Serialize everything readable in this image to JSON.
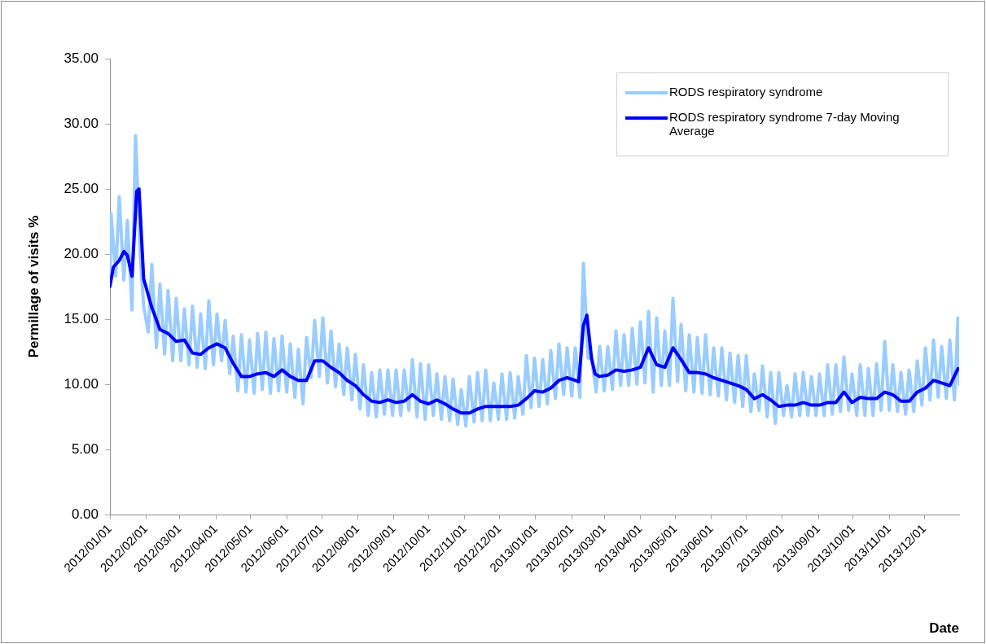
{
  "chart_data": {
    "type": "line",
    "xlabel": "Date",
    "ylabel": "Permillage of visits %",
    "xlim": [
      "2012-01-01",
      "2013-12-31"
    ],
    "xticks": [
      {
        "value": "2012-01-01",
        "label": "2012/01/01"
      },
      {
        "value": "2012-02-01",
        "label": "2012/02/01"
      },
      {
        "value": "2012-03-01",
        "label": "2012/03/01"
      },
      {
        "value": "2012-04-01",
        "label": "2012/04/01"
      },
      {
        "value": "2012-05-01",
        "label": "2012/05/01"
      },
      {
        "value": "2012-06-01",
        "label": "2012/06/01"
      },
      {
        "value": "2012-07-01",
        "label": "2012/07/01"
      },
      {
        "value": "2012-08-01",
        "label": "2012/08/01"
      },
      {
        "value": "2012-09-01",
        "label": "2012/09/01"
      },
      {
        "value": "2012-10-01",
        "label": "2012/10/01"
      },
      {
        "value": "2012-11-01",
        "label": "2012/11/01"
      },
      {
        "value": "2012-12-01",
        "label": "2012/12/01"
      },
      {
        "value": "2013-01-01",
        "label": "2013/01/01"
      },
      {
        "value": "2013-02-01",
        "label": "2013/02/01"
      },
      {
        "value": "2013-03-01",
        "label": "2013/03/01"
      },
      {
        "value": "2013-04-01",
        "label": "2013/04/01"
      },
      {
        "value": "2013-05-01",
        "label": "2013/05/01"
      },
      {
        "value": "2013-06-01",
        "label": "2013/06/01"
      },
      {
        "value": "2013-07-01",
        "label": "2013/07/01"
      },
      {
        "value": "2013-08-01",
        "label": "2013/08/01"
      },
      {
        "value": "2013-09-01",
        "label": "2013/09/01"
      },
      {
        "value": "2013-10-01",
        "label": "2013/10/01"
      },
      {
        "value": "2013-11-01",
        "label": "2013/11/01"
      },
      {
        "value": "2013-12-01",
        "label": "2013/12/01"
      }
    ],
    "ylim": [
      0,
      35
    ],
    "yticks": [
      {
        "value": 0,
        "label": "0.00"
      },
      {
        "value": 5,
        "label": "5.00"
      },
      {
        "value": 10,
        "label": "10.00"
      },
      {
        "value": 15,
        "label": "15.00"
      },
      {
        "value": 20,
        "label": "20.00"
      },
      {
        "value": 25,
        "label": "25.00"
      },
      {
        "value": 30,
        "label": "30.00"
      },
      {
        "value": 35,
        "label": "35.00"
      }
    ],
    "grid": false,
    "legend": "top right",
    "series": [
      {
        "name": "RODS respiratory syndrome",
        "color": "#99ccff",
        "x": [
          "2012-01-01",
          "2012-01-02",
          "2012-01-06",
          "2012-01-09",
          "2012-01-13",
          "2012-01-16",
          "2012-01-20",
          "2012-01-23",
          "2012-01-27",
          "2012-01-30",
          "2012-02-03",
          "2012-02-06",
          "2012-02-10",
          "2012-02-13",
          "2012-02-17",
          "2012-02-20",
          "2012-02-24",
          "2012-02-27",
          "2012-03-02",
          "2012-03-05",
          "2012-03-09",
          "2012-03-12",
          "2012-03-16",
          "2012-03-19",
          "2012-03-23",
          "2012-03-26",
          "2012-03-30",
          "2012-04-02",
          "2012-04-06",
          "2012-04-09",
          "2012-04-13",
          "2012-04-16",
          "2012-04-20",
          "2012-04-23",
          "2012-04-27",
          "2012-04-30",
          "2012-05-04",
          "2012-05-07",
          "2012-05-11",
          "2012-05-14",
          "2012-05-18",
          "2012-05-21",
          "2012-05-25",
          "2012-05-28",
          "2012-06-01",
          "2012-06-04",
          "2012-06-08",
          "2012-06-11",
          "2012-06-15",
          "2012-06-18",
          "2012-06-22",
          "2012-06-25",
          "2012-06-29",
          "2012-07-02",
          "2012-07-06",
          "2012-07-09",
          "2012-07-13",
          "2012-07-16",
          "2012-07-20",
          "2012-07-23",
          "2012-07-27",
          "2012-07-30",
          "2012-08-03",
          "2012-08-06",
          "2012-08-10",
          "2012-08-13",
          "2012-08-17",
          "2012-08-20",
          "2012-08-24",
          "2012-08-27",
          "2012-08-31",
          "2012-09-03",
          "2012-09-07",
          "2012-09-10",
          "2012-09-14",
          "2012-09-17",
          "2012-09-21",
          "2012-09-24",
          "2012-09-28",
          "2012-10-01",
          "2012-10-05",
          "2012-10-08",
          "2012-10-12",
          "2012-10-15",
          "2012-10-19",
          "2012-10-22",
          "2012-10-26",
          "2012-10-29",
          "2012-11-02",
          "2012-11-05",
          "2012-11-09",
          "2012-11-12",
          "2012-11-16",
          "2012-11-19",
          "2012-11-23",
          "2012-11-26",
          "2012-11-30",
          "2012-12-03",
          "2012-12-07",
          "2012-12-10",
          "2012-12-14",
          "2012-12-17",
          "2012-12-21",
          "2012-12-24",
          "2012-12-28",
          "2012-12-31",
          "2013-01-04",
          "2013-01-07",
          "2013-01-11",
          "2013-01-14",
          "2013-01-18",
          "2013-01-21",
          "2013-01-25",
          "2013-01-28",
          "2013-02-01",
          "2013-02-04",
          "2013-02-08",
          "2013-02-11",
          "2013-02-15",
          "2013-02-18",
          "2013-02-22",
          "2013-02-25",
          "2013-03-01",
          "2013-03-04",
          "2013-03-08",
          "2013-03-11",
          "2013-03-15",
          "2013-03-18",
          "2013-03-22",
          "2013-03-25",
          "2013-03-29",
          "2013-04-01",
          "2013-04-05",
          "2013-04-08",
          "2013-04-12",
          "2013-04-15",
          "2013-04-19",
          "2013-04-22",
          "2013-04-26",
          "2013-04-29",
          "2013-05-03",
          "2013-05-06",
          "2013-05-10",
          "2013-05-13",
          "2013-05-17",
          "2013-05-20",
          "2013-05-24",
          "2013-05-27",
          "2013-05-31",
          "2013-06-03",
          "2013-06-07",
          "2013-06-10",
          "2013-06-14",
          "2013-06-17",
          "2013-06-21",
          "2013-06-24",
          "2013-06-28",
          "2013-07-01",
          "2013-07-05",
          "2013-07-08",
          "2013-07-12",
          "2013-07-15",
          "2013-07-19",
          "2013-07-22",
          "2013-07-26",
          "2013-07-29",
          "2013-08-02",
          "2013-08-05",
          "2013-08-09",
          "2013-08-12",
          "2013-08-16",
          "2013-08-19",
          "2013-08-23",
          "2013-08-26",
          "2013-08-30",
          "2013-09-02",
          "2013-09-06",
          "2013-09-09",
          "2013-09-13",
          "2013-09-16",
          "2013-09-20",
          "2013-09-23",
          "2013-09-27",
          "2013-09-30",
          "2013-10-04",
          "2013-10-07",
          "2013-10-11",
          "2013-10-14",
          "2013-10-18",
          "2013-10-21",
          "2013-10-25",
          "2013-10-28",
          "2013-11-01",
          "2013-11-04",
          "2013-11-08",
          "2013-11-11",
          "2013-11-15",
          "2013-11-18",
          "2013-11-22",
          "2013-11-25",
          "2013-11-29",
          "2013-12-02",
          "2013-12-06",
          "2013-12-09",
          "2013-12-13",
          "2013-12-16",
          "2013-12-20",
          "2013-12-23",
          "2013-12-27",
          "2013-12-30",
          "2013-12-31"
        ],
        "values": [
          17.8,
          23.1,
          18.3,
          24.4,
          18.0,
          22.6,
          15.7,
          29.1,
          20.0,
          16.0,
          14.0,
          19.2,
          12.8,
          17.7,
          12.3,
          17.2,
          11.8,
          16.6,
          11.8,
          15.8,
          11.5,
          16.0,
          11.3,
          15.4,
          11.2,
          16.4,
          11.5,
          15.4,
          11.8,
          14.9,
          10.8,
          13.7,
          9.5,
          13.8,
          9.4,
          13.4,
          9.3,
          13.9,
          9.6,
          14.0,
          9.3,
          13.5,
          9.5,
          13.7,
          9.4,
          13.1,
          9.0,
          12.7,
          8.5,
          13.6,
          10.5,
          14.9,
          10.6,
          15.1,
          10.1,
          14.1,
          9.8,
          13.1,
          9.2,
          12.8,
          8.8,
          12.3,
          8.1,
          11.5,
          7.6,
          10.9,
          7.5,
          11.1,
          7.7,
          11.1,
          7.6,
          11.1,
          7.6,
          11.1,
          8.0,
          11.9,
          7.5,
          11.6,
          7.3,
          11.5,
          7.6,
          10.8,
          7.3,
          10.6,
          7.2,
          10.4,
          6.9,
          9.6,
          6.8,
          10.6,
          7.1,
          10.9,
          7.2,
          11.1,
          7.2,
          10.1,
          7.3,
          10.8,
          7.3,
          10.9,
          7.4,
          10.6,
          7.7,
          12.2,
          8.2,
          12.0,
          8.3,
          11.9,
          8.5,
          12.6,
          8.9,
          13.1,
          9.2,
          12.8,
          9.1,
          12.8,
          9.0,
          19.3,
          12.0,
          12.0,
          9.4,
          12.9,
          9.5,
          12.9,
          9.6,
          14.1,
          9.9,
          13.8,
          9.9,
          14.3,
          10.0,
          14.8,
          10.1,
          15.6,
          9.4,
          15.1,
          9.9,
          14.1,
          9.9,
          16.6,
          10.2,
          14.6,
          9.5,
          13.8,
          9.4,
          13.6,
          9.3,
          13.8,
          9.2,
          12.8,
          9.1,
          12.8,
          8.8,
          12.4,
          8.6,
          12.2,
          8.3,
          12.2,
          7.9,
          10.8,
          8.0,
          11.4,
          7.5,
          10.9,
          7.0,
          10.9,
          7.6,
          9.9,
          7.5,
          10.8,
          7.6,
          10.9,
          7.6,
          10.6,
          7.6,
          10.8,
          7.6,
          11.5,
          7.7,
          11.5,
          7.9,
          12.1,
          8.0,
          10.8,
          7.6,
          11.5,
          7.6,
          11.2,
          7.6,
          11.6,
          8.0,
          13.3,
          8.0,
          11.5,
          7.9,
          10.9,
          7.7,
          11.1,
          7.9,
          11.8,
          8.4,
          12.8,
          8.8,
          13.4,
          9.0,
          12.9,
          8.9,
          13.4,
          8.8,
          15.1,
          10.0
        ]
      },
      {
        "name": "RODS respiratory syndrome 7-day Moving Average",
        "color": "#0000ff",
        "x": [
          "2012-01-01",
          "2012-01-04",
          "2012-01-09",
          "2012-01-13",
          "2012-01-16",
          "2012-01-20",
          "2012-01-24",
          "2012-01-26",
          "2012-01-30",
          "2012-02-06",
          "2012-02-13",
          "2012-02-20",
          "2012-02-27",
          "2012-03-05",
          "2012-03-12",
          "2012-03-19",
          "2012-03-26",
          "2012-04-02",
          "2012-04-09",
          "2012-04-16",
          "2012-04-23",
          "2012-04-30",
          "2012-05-07",
          "2012-05-14",
          "2012-05-21",
          "2012-05-28",
          "2012-06-04",
          "2012-06-11",
          "2012-06-18",
          "2012-06-25",
          "2012-07-02",
          "2012-07-09",
          "2012-07-16",
          "2012-07-23",
          "2012-07-30",
          "2012-08-06",
          "2012-08-13",
          "2012-08-20",
          "2012-08-27",
          "2012-09-03",
          "2012-09-10",
          "2012-09-17",
          "2012-09-24",
          "2012-10-01",
          "2012-10-08",
          "2012-10-15",
          "2012-10-22",
          "2012-10-29",
          "2012-11-05",
          "2012-11-12",
          "2012-11-19",
          "2012-11-26",
          "2012-12-03",
          "2012-12-10",
          "2012-12-17",
          "2012-12-24",
          "2012-12-31",
          "2013-01-07",
          "2013-01-14",
          "2013-01-21",
          "2013-01-28",
          "2013-02-04",
          "2013-02-07",
          "2013-02-11",
          "2013-02-14",
          "2013-02-18",
          "2013-02-21",
          "2013-02-25",
          "2013-03-04",
          "2013-03-11",
          "2013-03-18",
          "2013-03-25",
          "2013-04-01",
          "2013-04-08",
          "2013-04-15",
          "2013-04-22",
          "2013-04-29",
          "2013-05-06",
          "2013-05-13",
          "2013-05-20",
          "2013-05-27",
          "2013-06-03",
          "2013-06-10",
          "2013-06-17",
          "2013-06-24",
          "2013-07-01",
          "2013-07-08",
          "2013-07-15",
          "2013-07-22",
          "2013-07-29",
          "2013-08-05",
          "2013-08-12",
          "2013-08-19",
          "2013-08-26",
          "2013-09-02",
          "2013-09-09",
          "2013-09-16",
          "2013-09-23",
          "2013-09-30",
          "2013-10-07",
          "2013-10-14",
          "2013-10-21",
          "2013-10-28",
          "2013-11-04",
          "2013-11-11",
          "2013-11-18",
          "2013-11-25",
          "2013-12-02",
          "2013-12-09",
          "2013-12-16",
          "2013-12-23",
          "2013-12-30"
        ],
        "values": [
          17.5,
          19.0,
          19.5,
          20.2,
          19.9,
          18.3,
          24.8,
          25.0,
          18.1,
          15.9,
          14.2,
          13.9,
          13.3,
          13.4,
          12.4,
          12.3,
          12.8,
          13.1,
          12.8,
          11.6,
          10.6,
          10.6,
          10.8,
          10.9,
          10.6,
          11.1,
          10.6,
          10.3,
          10.3,
          11.8,
          11.8,
          11.3,
          10.9,
          10.3,
          9.9,
          9.2,
          8.7,
          8.6,
          8.8,
          8.6,
          8.7,
          9.2,
          8.7,
          8.5,
          8.8,
          8.5,
          8.1,
          7.8,
          7.8,
          8.1,
          8.3,
          8.3,
          8.3,
          8.3,
          8.4,
          8.9,
          9.5,
          9.4,
          9.7,
          10.3,
          10.5,
          10.3,
          10.2,
          14.5,
          15.3,
          12.0,
          10.8,
          10.6,
          10.7,
          11.1,
          11.0,
          11.1,
          11.3,
          12.8,
          11.5,
          11.3,
          12.8,
          11.9,
          10.9,
          10.9,
          10.8,
          10.5,
          10.3,
          10.1,
          9.9,
          9.6,
          8.9,
          9.2,
          8.8,
          8.3,
          8.4,
          8.4,
          8.6,
          8.4,
          8.4,
          8.6,
          8.6,
          9.4,
          8.6,
          9.0,
          8.9,
          8.9,
          9.4,
          9.2,
          8.7,
          8.7,
          9.4,
          9.7,
          10.3,
          10.1,
          9.9,
          11.2
        ]
      }
    ]
  }
}
